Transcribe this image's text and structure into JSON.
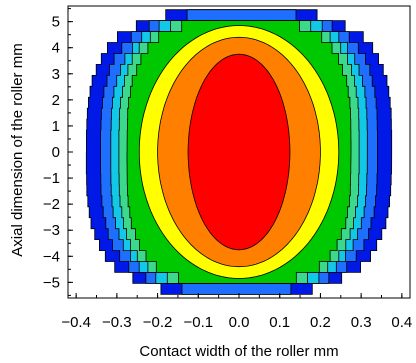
{
  "chart_data": {
    "type": "contour",
    "title": "",
    "xlabel": "Contact width of the roller  mm",
    "ylabel": "Axial dimension of the roller  mm",
    "xlim": [
      -0.42,
      0.42
    ],
    "ylim": [
      -5.6,
      5.6
    ],
    "xticks": [
      "−0.4",
      "−0.3",
      "−0.2",
      "−0.1",
      "0.0",
      "0.1",
      "0.2",
      "0.3",
      "0.4"
    ],
    "xtick_values": [
      -0.4,
      -0.3,
      -0.2,
      -0.1,
      0.0,
      0.1,
      0.2,
      0.3,
      0.4
    ],
    "yticks": [
      "5",
      "4",
      "3",
      "2",
      "1",
      "0",
      "−1",
      "−2",
      "−3",
      "−4",
      "−5"
    ],
    "ytick_values": [
      5,
      4,
      3,
      2,
      1,
      0,
      -1,
      -2,
      -3,
      -4,
      -5
    ],
    "grid": false,
    "levels": [
      {
        "color": "#0019e6",
        "half_width": 0.375,
        "half_height": 5.42,
        "step": 0.16
      },
      {
        "color": "#1f6fff",
        "half_width": 0.34,
        "half_height": 5.33,
        "step": 0.13
      },
      {
        "color": "#12c8e6",
        "half_width": 0.315,
        "half_height": 5.24,
        "step": 0.11
      },
      {
        "color": "#3cd98c",
        "half_width": 0.295,
        "half_height": 5.15,
        "step": 0.09
      },
      {
        "color": "#00c800",
        "half_width": 0.275,
        "half_height": 5.05,
        "step": 0.07
      },
      {
        "color": "#ffff00",
        "half_width": 0.245,
        "half_height": 4.85,
        "step": 0
      },
      {
        "color": "#ff8000",
        "half_width": 0.2,
        "half_height": 4.4,
        "step": 0
      },
      {
        "color": "#ff0000",
        "half_width": 0.125,
        "half_height": 3.75,
        "step": 0
      }
    ]
  }
}
